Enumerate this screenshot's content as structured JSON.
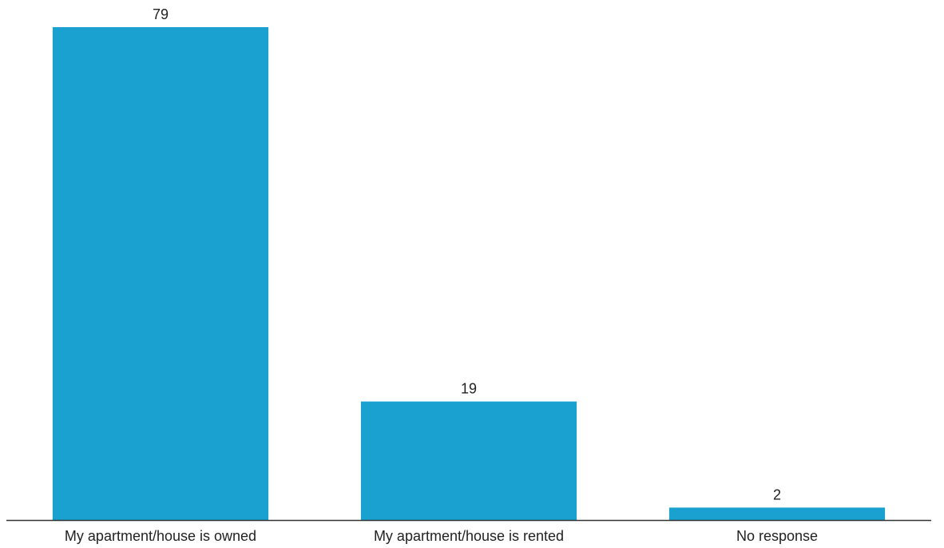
{
  "chart_data": {
    "type": "bar",
    "categories": [
      "My apartment/house is owned",
      "My apartment/house is rented",
      "No response"
    ],
    "values": [
      79,
      19,
      2
    ],
    "title": "",
    "xlabel": "",
    "ylabel": "",
    "ylim": [
      0,
      79
    ],
    "grid": false,
    "legend": "none",
    "data_labels": true,
    "colors": {
      "bar": "#1aa1cf",
      "axis": "#333333",
      "text": "#222222"
    }
  }
}
